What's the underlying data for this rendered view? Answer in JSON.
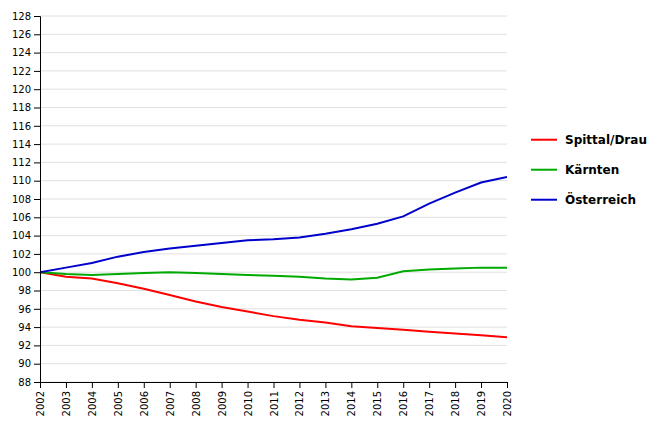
{
  "chart_data": {
    "type": "line",
    "x": [
      2002,
      2003,
      2004,
      2005,
      2006,
      2007,
      2008,
      2009,
      2010,
      2011,
      2012,
      2013,
      2014,
      2015,
      2016,
      2017,
      2018,
      2019,
      2020
    ],
    "series": [
      {
        "name": "Spittal/Drau",
        "color": "#ff0000",
        "values": [
          100,
          99.5,
          99.3,
          98.8,
          98.2,
          97.5,
          96.8,
          96.2,
          95.7,
          95.2,
          94.8,
          94.5,
          94.1,
          93.9,
          93.7,
          93.5,
          93.3,
          93.1,
          92.9
        ]
      },
      {
        "name": "Kärnten",
        "color": "#00aa00",
        "values": [
          100,
          99.8,
          99.7,
          99.8,
          99.9,
          100.0,
          99.9,
          99.8,
          99.7,
          99.6,
          99.5,
          99.3,
          99.2,
          99.4,
          100.1,
          100.3,
          100.4,
          100.5,
          100.5
        ]
      },
      {
        "name": "Österreich",
        "color": "#0000cc",
        "values": [
          100,
          100.5,
          101.0,
          101.7,
          102.2,
          102.6,
          102.9,
          103.2,
          103.5,
          103.6,
          103.8,
          104.2,
          104.7,
          105.3,
          106.1,
          107.5,
          108.7,
          109.8,
          110.4
        ]
      }
    ],
    "xlim": [
      2002,
      2020
    ],
    "xticks": [
      2002,
      2003,
      2004,
      2005,
      2006,
      2007,
      2008,
      2009,
      2010,
      2011,
      2012,
      2013,
      2014,
      2015,
      2016,
      2017,
      2018,
      2019,
      2020
    ],
    "ylim": [
      88,
      128
    ],
    "yticks": [
      88,
      90,
      92,
      94,
      96,
      98,
      100,
      102,
      104,
      106,
      108,
      110,
      112,
      114,
      116,
      118,
      120,
      122,
      124,
      126,
      128
    ],
    "grid": true,
    "legend": "right"
  }
}
